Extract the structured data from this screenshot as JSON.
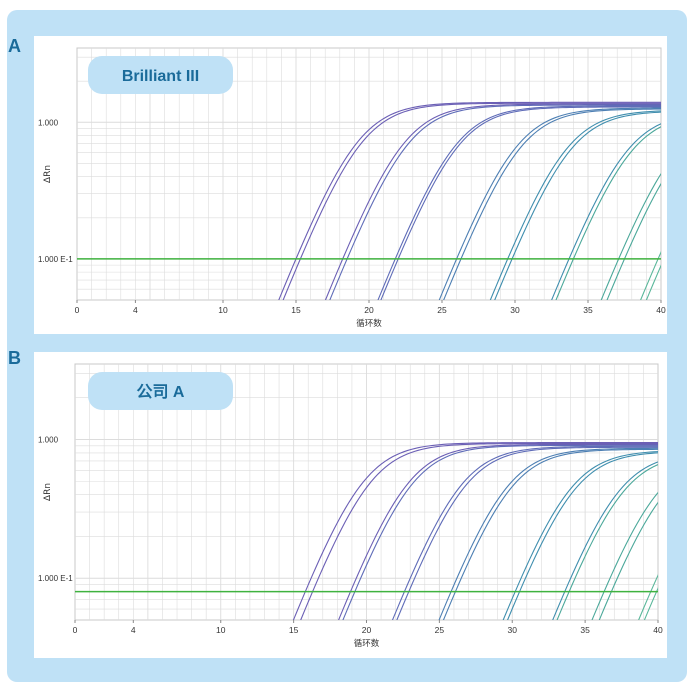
{
  "panels": [
    {
      "letter": "A",
      "tag": "Brilliant III"
    },
    {
      "letter": "B",
      "tag": "公司 A"
    }
  ],
  "colors": {
    "frame": "#bfe1f6",
    "panel_letter": "#1a6b9a",
    "tag_fill": "#bfe1f6",
    "tag_text": "#1a6b9a",
    "threshold": "#3fb23f",
    "grid": "#dcdcdc",
    "curve_palette": [
      "#6b5fb5",
      "#5f6cb8",
      "#4d7fb3",
      "#3f8eae",
      "#4ba89a",
      "#5ab79a"
    ]
  },
  "chart_data": [
    {
      "type": "line",
      "panel": "A",
      "title": "Brilliant III",
      "xlabel": "循环数",
      "ylabel": "ΔRn",
      "y_scale": "log",
      "xlim": [
        0,
        40
      ],
      "ylim": [
        0.05,
        3.5
      ],
      "x_ticks": [
        0,
        4,
        10,
        15,
        20,
        25,
        30,
        35,
        40
      ],
      "y_ticks": [
        {
          "value": 1.0,
          "label": "1.000"
        },
        {
          "value": 0.1,
          "label": "1.000 E-1"
        }
      ],
      "threshold": 0.1,
      "grid": true,
      "plateau": 1.4,
      "curves_ct": [
        15.0,
        15.3,
        18.2,
        18.5,
        21.8,
        22.0,
        26.0,
        26.3,
        29.5,
        29.8,
        33.7,
        34.0,
        37.1,
        37.5,
        39.8,
        40.2
      ]
    },
    {
      "type": "line",
      "panel": "B",
      "title": "公司 A",
      "xlabel": "循环数",
      "ylabel": "ΔRn",
      "y_scale": "log",
      "xlim": [
        0,
        40
      ],
      "ylim": [
        0.05,
        3.5
      ],
      "x_ticks": [
        0,
        4,
        10,
        15,
        20,
        25,
        30,
        35,
        40
      ],
      "y_ticks": [
        {
          "value": 1.0,
          "label": "1.000"
        },
        {
          "value": 0.1,
          "label": "1.000 E-1"
        }
      ],
      "threshold": 0.08,
      "grid": true,
      "plateau": 0.95,
      "curves_ct": [
        15.8,
        16.3,
        18.9,
        19.2,
        22.6,
        22.9,
        25.8,
        26.1,
        30.2,
        30.5,
        33.6,
        33.9,
        36.3,
        36.8,
        39.5,
        39.9
      ]
    }
  ]
}
